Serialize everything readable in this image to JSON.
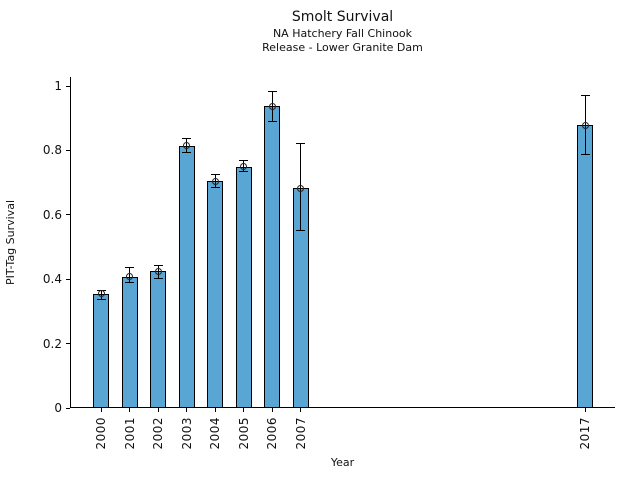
{
  "figure": {
    "title": "Smolt Survival",
    "subtitle_line1": "NA Hatchery Fall Chinook",
    "subtitle_line2": "Release - Lower Granite Dam"
  },
  "chart_data": {
    "type": "bar",
    "title": "Smolt Survival",
    "subtitle": [
      "NA Hatchery Fall Chinook",
      "Release - Lower Granite Dam"
    ],
    "xlabel": "Year",
    "ylabel": "PIT-Tag Survival",
    "xlim": [
      1998.9,
      2018.05
    ],
    "ylim": [
      0,
      1.028
    ],
    "yticks": [
      0,
      0.2,
      0.4,
      0.6,
      0.8,
      1
    ],
    "ytick_labels": [
      "0",
      "0.2",
      "0.4",
      "0.6",
      "0.8",
      "1"
    ],
    "grid": false,
    "legend": null,
    "bar_color": "#59A5D3",
    "bar_edge_color": "#000000",
    "error_bar_color": "#000000",
    "marker": "open-circle",
    "points": [
      {
        "year": 2000,
        "label": "2000",
        "value": 0.355,
        "err_lo": 0.338,
        "err_hi": 0.366
      },
      {
        "year": 2001,
        "label": "2001",
        "value": 0.407,
        "err_lo": 0.391,
        "err_hi": 0.437
      },
      {
        "year": 2002,
        "label": "2002",
        "value": 0.425,
        "err_lo": 0.401,
        "err_hi": 0.444
      },
      {
        "year": 2003,
        "label": "2003",
        "value": 0.815,
        "err_lo": 0.792,
        "err_hi": 0.838
      },
      {
        "year": 2004,
        "label": "2004",
        "value": 0.705,
        "err_lo": 0.686,
        "err_hi": 0.724
      },
      {
        "year": 2005,
        "label": "2005",
        "value": 0.75,
        "err_lo": 0.733,
        "err_hi": 0.77
      },
      {
        "year": 2006,
        "label": "2006",
        "value": 0.937,
        "err_lo": 0.891,
        "err_hi": 0.984
      },
      {
        "year": 2007,
        "label": "2007",
        "value": 0.683,
        "err_lo": 0.55,
        "err_hi": 0.823
      },
      {
        "year": 2017,
        "label": "2017",
        "value": 0.878,
        "err_lo": 0.786,
        "err_hi": 0.969
      }
    ]
  }
}
